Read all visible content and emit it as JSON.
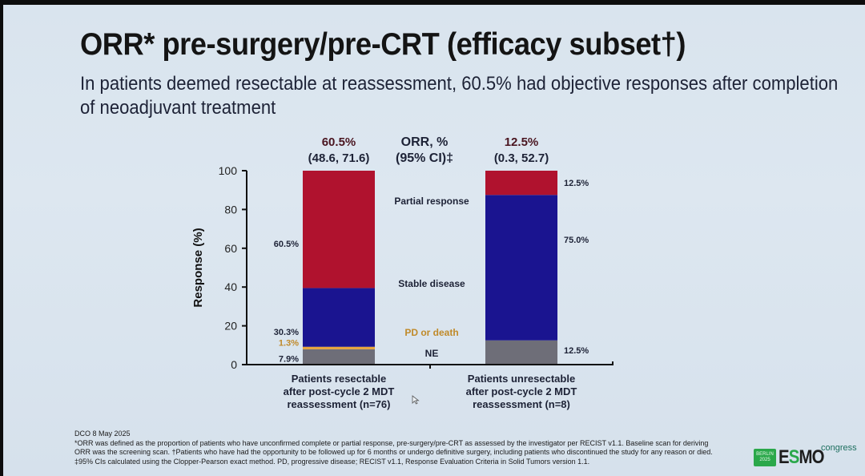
{
  "slide": {
    "title": "ORR* pre-surgery/pre-CRT (efficacy subset†)",
    "subtitle": "In patients deemed resectable at reassessment, 60.5% had objective responses after completion of neoadjuvant treatment",
    "footnotes": [
      "DCO 8 May 2025",
      "*ORR was defined as the proportion of patients who have unconfirmed complete or partial response, pre-surgery/pre-CRT as assessed by the investigator per RECIST v1.1. Baseline scan for deriving",
      "ORR was the screening scan. †Patients who have had the opportunity to be followed up for 6 months or undergo definitive surgery, including patients who discontinued the study for any reason or died.",
      "‡95% CIs calculated using the Clopper-Pearson exact method. PD, progressive disease; RECIST v1.1, Response Evaluation Criteria in Solid Tumors version 1.1."
    ],
    "logo": {
      "badge_line1": "BERLIN",
      "badge_line2": "2025",
      "brand_a": "E",
      "brand_b": "S",
      "brand_c": "MO",
      "suffix": "congress"
    }
  },
  "chart_data": {
    "type": "bar",
    "stacked": true,
    "title": "",
    "xlabel": "",
    "ylabel": "Response (%)",
    "ylim": [
      0,
      100
    ],
    "yticks": [
      0,
      20,
      40,
      60,
      80,
      100
    ],
    "grid": false,
    "center_header": [
      "ORR, %",
      "(95% CI)‡"
    ],
    "categories": [
      [
        "Patients resectable",
        "after post-cycle 2 MDT",
        "reassessment (n=76)"
      ],
      [
        "Patients unresectable",
        "after post-cycle 2 MDT",
        "reassessment (n=8)"
      ]
    ],
    "orr_labels": [
      {
        "value": "60.5%",
        "ci": "(48.6, 71.6)"
      },
      {
        "value": "12.5%",
        "ci": "(0.3, 52.7)"
      }
    ],
    "series": [
      {
        "name": "NE",
        "color": "#6e6e78",
        "label_color": "#1d2236",
        "values": [
          7.9,
          12.5
        ],
        "labels": [
          "7.9%",
          "12.5%"
        ]
      },
      {
        "name": "PD or death",
        "color": "#e8a43c",
        "label_color": "#c08a2a",
        "values": [
          1.3,
          0
        ],
        "labels": [
          "1.3%",
          ""
        ]
      },
      {
        "name": "Stable disease",
        "color": "#1a1490",
        "label_color": "#1d2236",
        "values": [
          30.3,
          75.0
        ],
        "labels": [
          "30.3%",
          "75.0%"
        ]
      },
      {
        "name": "Partial response",
        "color": "#b0122e",
        "label_color": "#1d2236",
        "values": [
          60.5,
          12.5
        ],
        "labels": [
          "60.5%",
          "12.5%"
        ]
      }
    ]
  }
}
